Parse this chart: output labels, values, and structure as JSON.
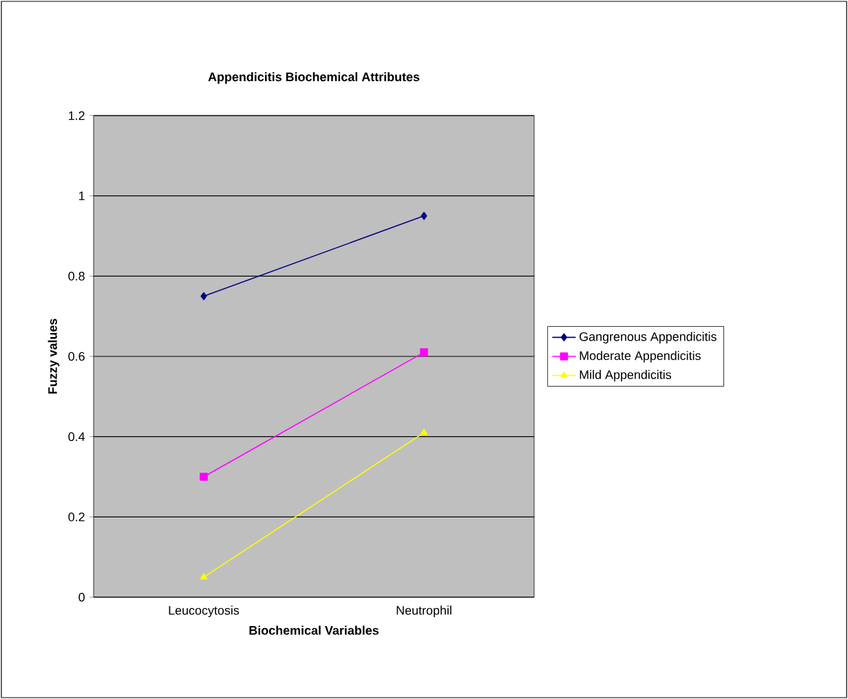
{
  "chart_data": {
    "type": "line",
    "title": "Appendicitis Biochemical Attributes",
    "xlabel": "Biochemical Variables",
    "ylabel": "Fuzzy values",
    "categories": [
      "Leucocytosis",
      "Neutrophil"
    ],
    "series": [
      {
        "name": "Gangrenous Appendicitis",
        "color": "#000080",
        "marker": "diamond",
        "values": [
          0.75,
          0.95
        ]
      },
      {
        "name": "Moderate Appendicitis",
        "color": "#ff00ff",
        "marker": "square",
        "values": [
          0.3,
          0.61
        ]
      },
      {
        "name": "Mild Appendicitis",
        "color": "#ffff00",
        "marker": "triangle",
        "values": [
          0.05,
          0.41
        ]
      }
    ],
    "ylim": [
      0,
      1.2
    ],
    "yticks": [
      0,
      0.2,
      0.4,
      0.6,
      0.8,
      1,
      1.2
    ],
    "grid": "y",
    "legend": "right"
  }
}
